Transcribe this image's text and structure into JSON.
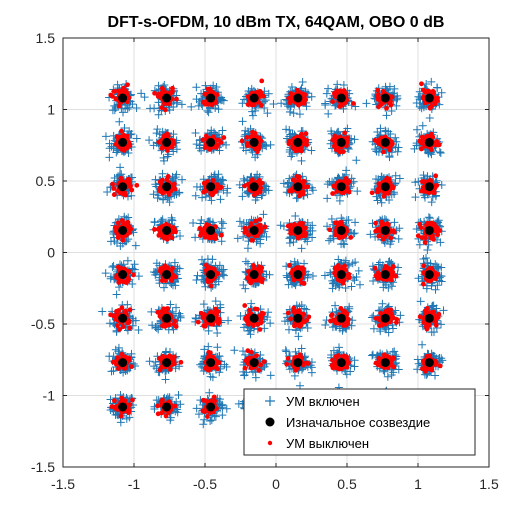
{
  "chart_data": {
    "type": "scatter",
    "title": "DFT-s-OFDM, 10 dBm TX, 64QAM, OBO 0 dB",
    "xlabel": "",
    "ylabel": "",
    "xlim": [
      -1.5,
      1.5
    ],
    "ylim": [
      -1.5,
      1.5
    ],
    "xticks": [
      -1.5,
      -1,
      -0.5,
      0,
      0.5,
      1,
      1.5
    ],
    "yticks": [
      -1.5,
      -1,
      -0.5,
      0,
      0.5,
      1,
      1.5
    ],
    "xtick_labels": [
      "-1.5",
      "-1",
      "-0.5",
      "0",
      "0.5",
      "1",
      "1.5"
    ],
    "ytick_labels": [
      "-1.5",
      "-1",
      "-0.5",
      "0",
      "0.5",
      "1",
      "1.5"
    ],
    "grid": true,
    "legend_position": "bottom-right",
    "constellation_levels": [
      -1.08,
      -0.77,
      -0.46,
      -0.154,
      0.154,
      0.46,
      0.77,
      1.08
    ],
    "series": [
      {
        "name": "УМ включен",
        "marker": "plus",
        "color": "#1f77b4",
        "description_values": {
          "spread": 0.075
        }
      },
      {
        "name": "Изначальное созвездие",
        "marker": "dot",
        "color": "#000000"
      },
      {
        "name": "УМ выключен",
        "marker": "dot",
        "color": "#ff0000",
        "description_values": {
          "spread": 0.028
        }
      }
    ]
  }
}
